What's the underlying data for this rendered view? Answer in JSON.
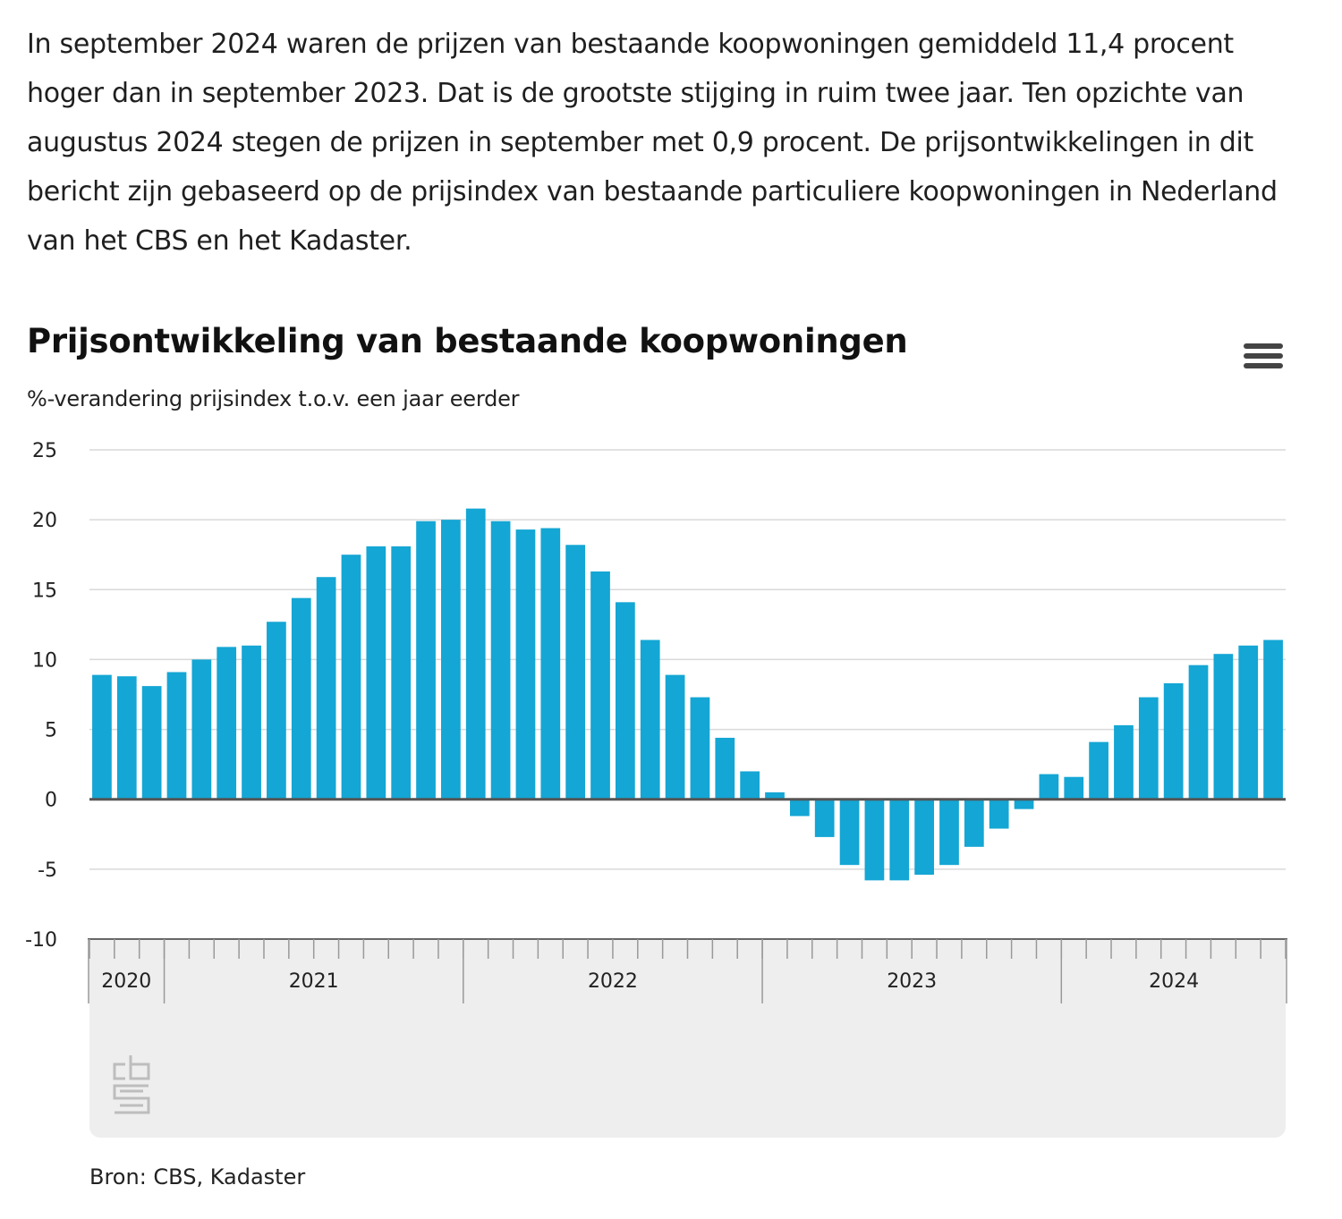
{
  "intro": {
    "text": "In september 2024 waren de prijzen van bestaande koopwoningen gemiddeld 11,4 procent hoger dan in september 2023. Dat is de grootste stijging in ruim twee jaar. Ten opzichte van augustus 2024 stegen de prijzen in september met 0,9 procent. De prijsontwikkelingen in dit bericht zijn gebaseerd op de prijsindex van bestaande particuliere koopwoningen in Nederland van het CBS en het Kadaster."
  },
  "chart": {
    "title": "Prijsontwikkeling van bestaande koopwoningen",
    "subtitle": "%-verandering prijsindex t.o.v. een jaar eerder",
    "menu_icon": "hamburger-menu-icon",
    "logo": "cbs-logo",
    "source": "Bron: CBS, Kadaster"
  },
  "colors": {
    "bar": "#14a6d4",
    "grid": "#d9d9d9",
    "zero_line": "#555555",
    "navigator_bg": "#eeeeee"
  },
  "chart_data": {
    "type": "bar",
    "title": "Prijsontwikkeling van bestaande koopwoningen",
    "ylabel": "%-verandering prijsindex t.o.v. een jaar eerder",
    "xlabel": "",
    "ylim": [
      -10,
      25
    ],
    "yticks": [
      25,
      20,
      15,
      10,
      5,
      0,
      -5,
      -10
    ],
    "grid": true,
    "year_labels": [
      "2020",
      "2021",
      "2022",
      "2023",
      "2024"
    ],
    "categories": [
      "2020-10",
      "2020-11",
      "2020-12",
      "2021-01",
      "2021-02",
      "2021-03",
      "2021-04",
      "2021-05",
      "2021-06",
      "2021-07",
      "2021-08",
      "2021-09",
      "2021-10",
      "2021-11",
      "2021-12",
      "2022-01",
      "2022-02",
      "2022-03",
      "2022-04",
      "2022-05",
      "2022-06",
      "2022-07",
      "2022-08",
      "2022-09",
      "2022-10",
      "2022-11",
      "2022-12",
      "2023-01",
      "2023-02",
      "2023-03",
      "2023-04",
      "2023-05",
      "2023-06",
      "2023-07",
      "2023-08",
      "2023-09",
      "2023-10",
      "2023-11",
      "2023-12",
      "2024-01",
      "2024-02",
      "2024-03",
      "2024-04",
      "2024-05",
      "2024-06",
      "2024-07",
      "2024-08",
      "2024-09"
    ],
    "values": [
      8.9,
      8.8,
      8.1,
      9.1,
      10.0,
      10.9,
      11.0,
      12.7,
      14.4,
      15.9,
      17.5,
      18.1,
      18.1,
      19.9,
      20.0,
      20.8,
      19.9,
      19.3,
      19.4,
      18.2,
      16.3,
      14.1,
      11.4,
      8.9,
      7.3,
      4.4,
      2.0,
      0.5,
      -1.2,
      -2.7,
      -4.7,
      -5.8,
      -5.8,
      -5.4,
      -4.7,
      -3.4,
      -2.1,
      -0.7,
      1.8,
      1.6,
      4.1,
      5.3,
      7.3,
      8.3,
      9.6,
      10.4,
      11.0,
      11.4
    ]
  }
}
